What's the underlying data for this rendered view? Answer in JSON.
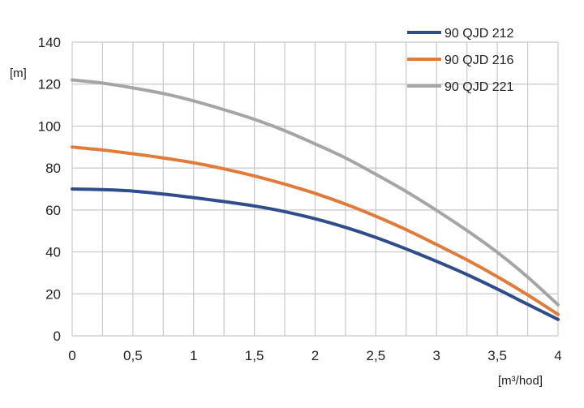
{
  "chart_data": {
    "type": "line",
    "title": "",
    "xlabel": "[m³/hod]",
    "ylabel": "[m]",
    "xlim": [
      0,
      4
    ],
    "ylim": [
      0,
      140
    ],
    "x_ticks": [
      0,
      0.5,
      1,
      1.5,
      2,
      2.5,
      3,
      3.5,
      4
    ],
    "x_tick_labels": [
      "0",
      "0,5",
      "1",
      "1,5",
      "2",
      "2,5",
      "3",
      "3,5",
      "4"
    ],
    "y_ticks": [
      0,
      20,
      40,
      60,
      80,
      100,
      120,
      140
    ],
    "y_tick_labels": [
      "0",
      "20",
      "40",
      "60",
      "80",
      "100",
      "120",
      "140"
    ],
    "x_minor_step": 0.25,
    "grid": true,
    "legend_position": "top-right",
    "series": [
      {
        "name": "90 QJD 212",
        "color": "#2e4d8a",
        "x": [
          0,
          0.25,
          0.5,
          0.75,
          1,
          1.25,
          1.5,
          1.75,
          2,
          2.25,
          2.5,
          2.75,
          3,
          3.25,
          3.5,
          3.75,
          4
        ],
        "y": [
          70,
          69.7,
          69,
          67.6,
          65.9,
          64,
          61.9,
          59.2,
          55.8,
          51.7,
          46.9,
          41.4,
          35.5,
          29.2,
          22.3,
          15,
          7.8
        ]
      },
      {
        "name": "90 QJD 216",
        "color": "#e07b39",
        "x": [
          0,
          0.25,
          0.5,
          0.75,
          1,
          1.25,
          1.5,
          1.75,
          2,
          2.25,
          2.5,
          2.75,
          3,
          3.25,
          3.5,
          3.75,
          4
        ],
        "y": [
          90,
          88.6,
          86.8,
          84.8,
          82.5,
          79.6,
          76.2,
          72.3,
          67.9,
          62.8,
          57,
          50.6,
          43.5,
          36.2,
          28.2,
          19.5,
          10.2
        ]
      },
      {
        "name": "90 QJD 221",
        "color": "#a5a5a5",
        "x": [
          0,
          0.25,
          0.5,
          0.75,
          1,
          1.25,
          1.5,
          1.75,
          2,
          2.25,
          2.5,
          2.75,
          3,
          3.25,
          3.5,
          3.75,
          4
        ],
        "y": [
          122,
          120.5,
          118.2,
          115.5,
          112,
          107.8,
          103.2,
          97.8,
          91.5,
          84.8,
          77,
          68.8,
          59.8,
          50.2,
          39.8,
          28,
          14.8
        ]
      }
    ]
  }
}
